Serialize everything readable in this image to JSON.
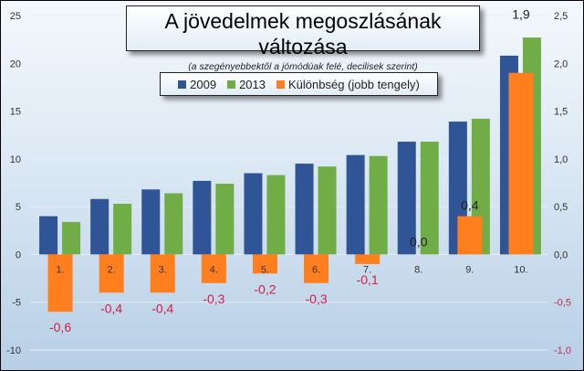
{
  "chart_data": {
    "type": "bar",
    "title": "A jövedelmek megoszlásának változása",
    "subtitle": "(a szegényebbektől  a jómódúak felé, decilisek szerint)",
    "categories": [
      "1.",
      "2.",
      "3.",
      "4.",
      "5.",
      "6.",
      "7.",
      "8.",
      "9.",
      "10."
    ],
    "series": [
      {
        "name": "2009",
        "axis": "left",
        "color": "#2f5597",
        "values": [
          4.0,
          5.8,
          6.8,
          7.7,
          8.5,
          9.5,
          10.4,
          11.8,
          13.9,
          20.8
        ]
      },
      {
        "name": "2013",
        "axis": "left",
        "color": "#70ad47",
        "values": [
          3.4,
          5.3,
          6.4,
          7.4,
          8.3,
          9.2,
          10.3,
          11.8,
          14.2,
          22.7
        ]
      },
      {
        "name": "Különbség (jobb tengely)",
        "axis": "right",
        "color": "#ff7f1e",
        "values": [
          -0.6,
          -0.4,
          -0.4,
          -0.3,
          -0.2,
          -0.3,
          -0.1,
          0.0,
          0.4,
          1.9
        ],
        "data_labels": [
          "-0,6",
          "-0,4",
          "-0,4",
          "-0,3",
          "-0,2",
          "-0,3",
          "-0,1",
          "0,0",
          "0,4",
          "1,9"
        ]
      }
    ],
    "ylim_left": [
      -10,
      25
    ],
    "ylim_right": [
      -1.0,
      2.5
    ],
    "left_ticks": [
      "-10",
      "-5",
      "0",
      "5",
      "10",
      "15",
      "20",
      "25"
    ],
    "right_ticks": [
      "-1,0",
      "-0,5",
      "0,0",
      "0,5",
      "1,0",
      "1,5",
      "2,0",
      "2,5"
    ],
    "grid": true,
    "legend_position": "top-center"
  }
}
